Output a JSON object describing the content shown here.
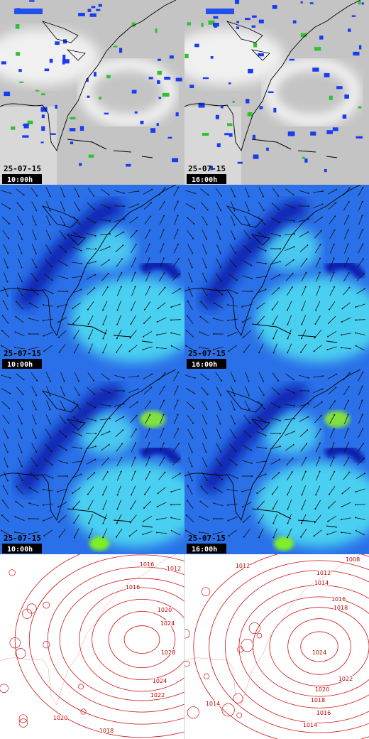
{
  "rows": [
    {
      "panels": [
        {
          "date": "25-07-15",
          "time": "10:00h"
        },
        {
          "date": "25-07-15",
          "time": "16:00h"
        }
      ]
    },
    {
      "panels": [
        {
          "date": "25-07-15",
          "time": "10:00h"
        },
        {
          "date": "25-07-15",
          "time": "16:00h"
        }
      ]
    },
    {
      "panels": [
        {
          "date": "25-07-15",
          "time": "10:00h"
        },
        {
          "date": "25-07-15",
          "time": "16:00h"
        }
      ]
    }
  ],
  "isobars": {
    "left": [
      1016,
      1012,
      1016,
      1020,
      1024,
      1028,
      1024,
      1022,
      1020,
      1018
    ],
    "right": [
      1008,
      1012,
      1012,
      1014,
      1016,
      1018,
      1024,
      1022,
      1020,
      1018,
      1016,
      1014,
      1014
    ]
  }
}
